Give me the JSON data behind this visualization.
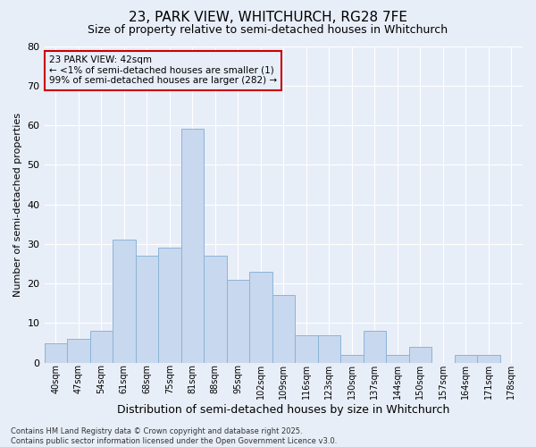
{
  "title": "23, PARK VIEW, WHITCHURCH, RG28 7FE",
  "subtitle": "Size of property relative to semi-detached houses in Whitchurch",
  "xlabel": "Distribution of semi-detached houses by size in Whitchurch",
  "ylabel": "Number of semi-detached properties",
  "bar_color": "#c8d8ee",
  "bar_edge_color": "#8cb4d8",
  "background_color": "#e8eef8",
  "categories": [
    "40sqm",
    "47sqm",
    "54sqm",
    "61sqm",
    "68sqm",
    "75sqm",
    "81sqm",
    "88sqm",
    "95sqm",
    "102sqm",
    "109sqm",
    "116sqm",
    "123sqm",
    "130sqm",
    "137sqm",
    "144sqm",
    "150sqm",
    "157sqm",
    "164sqm",
    "171sqm",
    "178sqm"
  ],
  "values": [
    5,
    6,
    8,
    31,
    27,
    29,
    59,
    27,
    21,
    23,
    17,
    7,
    7,
    2,
    8,
    2,
    4,
    0,
    2,
    2,
    0
  ],
  "ylim": [
    0,
    80
  ],
  "yticks": [
    0,
    10,
    20,
    30,
    40,
    50,
    60,
    70,
    80
  ],
  "annotation_text": "23 PARK VIEW: 42sqm\n← <1% of semi-detached houses are smaller (1)\n99% of semi-detached houses are larger (282) →",
  "footer": "Contains HM Land Registry data © Crown copyright and database right 2025.\nContains public sector information licensed under the Open Government Licence v3.0.",
  "grid_color": "#ffffff",
  "annotation_box_color": "#cc0000",
  "title_fontsize": 11,
  "subtitle_fontsize": 9,
  "xlabel_fontsize": 9,
  "ylabel_fontsize": 8,
  "tick_fontsize": 7,
  "annot_fontsize": 7.5,
  "footer_fontsize": 6
}
